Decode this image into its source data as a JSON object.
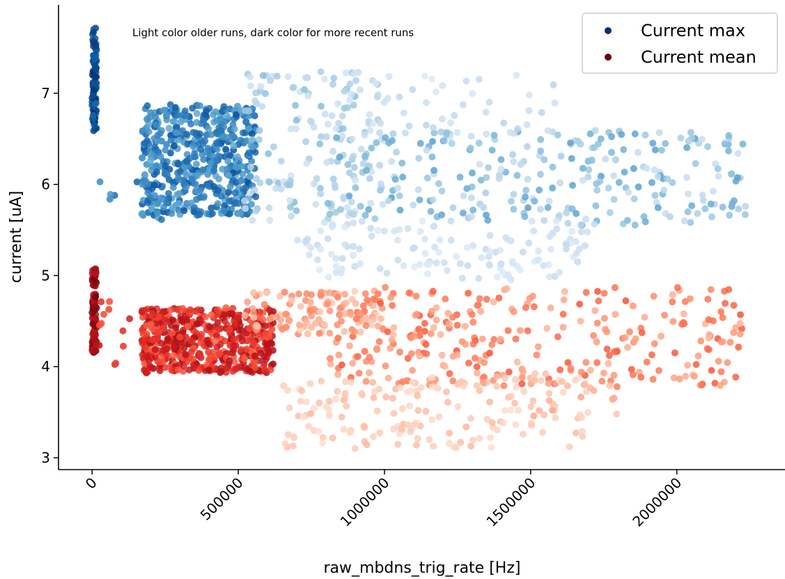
{
  "chart_data": {
    "type": "scatter",
    "title": "",
    "annotation": "Light color older runs, dark color for more recent runs",
    "xlabel": "raw_mbdns_trig_rate [Hz]",
    "ylabel": "current [uA]",
    "xlim": [
      -115000,
      2370000
    ],
    "ylim": [
      2.87,
      7.97
    ],
    "x_ticks": [
      0,
      500000,
      1000000,
      1500000,
      2000000
    ],
    "x_tick_labels": [
      "0",
      "500000",
      "1000000",
      "1500000",
      "2000000"
    ],
    "y_ticks": [
      3,
      4,
      5,
      6,
      7
    ],
    "y_tick_labels": [
      "3",
      "4",
      "5",
      "6",
      "7"
    ],
    "grid": false,
    "legend_position": "top-right",
    "color_encoding": "point color shade goes from light (older runs) to dark (more recent runs)",
    "series": [
      {
        "name": "Current max",
        "legend_color": "#08306b",
        "colormap": [
          "#deebf7",
          "#c6dbef",
          "#9ecae1",
          "#6baed6",
          "#4292c6",
          "#2171b5",
          "#08519c",
          "#08306b"
        ],
        "clusters": [
          {
            "x_range": [
              0,
              15000
            ],
            "y_range": [
              6.58,
              7.72
            ],
            "age": [
              0.75,
              1.0
            ],
            "count": 90
          },
          {
            "x_range": [
              170000,
              560000
            ],
            "y_range": [
              5.66,
              6.88
            ],
            "age": [
              0.45,
              0.85
            ],
            "count": 520
          },
          {
            "x_range": [
              20000,
              420000
            ],
            "y_range": [
              5.6,
              6.45
            ],
            "age": [
              0.5,
              0.8
            ],
            "count": 25
          },
          {
            "x_range": [
              520000,
              1000000
            ],
            "y_range": [
              5.6,
              7.25
            ],
            "age": [
              0.05,
              0.35
            ],
            "count": 150
          },
          {
            "x_range": [
              800000,
              2240000
            ],
            "y_range": [
              5.55,
              6.6
            ],
            "age": [
              0.1,
              0.5
            ],
            "count": 280
          },
          {
            "x_range": [
              700000,
              1700000
            ],
            "y_range": [
              4.95,
              5.6
            ],
            "age": [
              0.0,
              0.15
            ],
            "count": 130
          },
          {
            "x_range": [
              800000,
              1600000
            ],
            "y_range": [
              6.55,
              7.2
            ],
            "age": [
              0.0,
              0.2
            ],
            "count": 45
          }
        ]
      },
      {
        "name": "Current mean",
        "legend_color": "#67000d",
        "colormap": [
          "#fee0d2",
          "#fcbba1",
          "#fc9272",
          "#fb6a4a",
          "#ef3b2c",
          "#cb181d",
          "#a50f15",
          "#67000d"
        ],
        "clusters": [
          {
            "x_range": [
              0,
              15000
            ],
            "y_range": [
              4.15,
              5.08
            ],
            "age": [
              0.75,
              1.0
            ],
            "count": 90
          },
          {
            "x_range": [
              170000,
              620000
            ],
            "y_range": [
              3.93,
              4.65
            ],
            "age": [
              0.45,
              0.85
            ],
            "count": 520
          },
          {
            "x_range": [
              20000,
              130000
            ],
            "y_range": [
              3.95,
              4.75
            ],
            "age": [
              0.5,
              0.8
            ],
            "count": 12
          },
          {
            "x_range": [
              520000,
              1000000
            ],
            "y_range": [
              4.35,
              4.83
            ],
            "age": [
              0.05,
              0.35
            ],
            "count": 110
          },
          {
            "x_range": [
              800000,
              2240000
            ],
            "y_range": [
              3.78,
              4.88
            ],
            "age": [
              0.15,
              0.5
            ],
            "count": 300
          },
          {
            "x_range": [
              650000,
              1700000
            ],
            "y_range": [
              3.1,
              3.9
            ],
            "age": [
              0.0,
              0.15
            ],
            "count": 160
          },
          {
            "x_range": [
              1300000,
              1900000
            ],
            "y_range": [
              3.45,
              3.95
            ],
            "age": [
              0.05,
              0.25
            ],
            "count": 25
          }
        ]
      }
    ]
  }
}
